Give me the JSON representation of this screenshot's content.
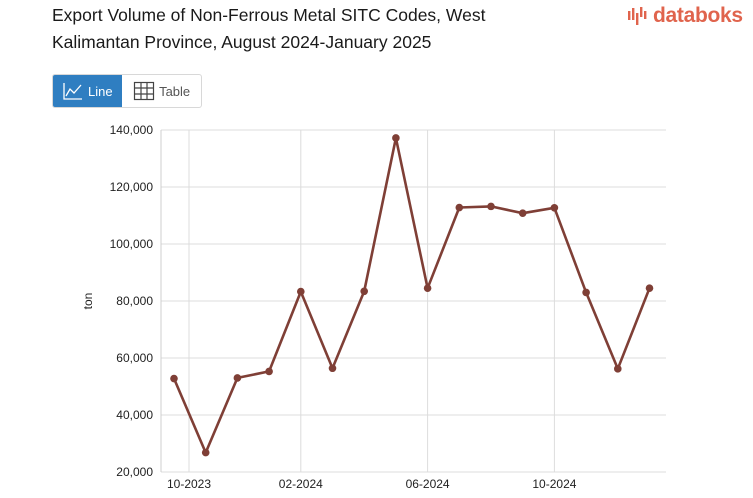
{
  "title": "Export Volume of Non-Ferrous Metal SITC Codes, West Kalimantan Province, August 2024-January 2025",
  "logo": {
    "text": "databoks",
    "color": "#e0644d"
  },
  "view_toggle": {
    "line_label": "Line",
    "table_label": "Table",
    "active": "Line",
    "active_color": "#2f7ec1"
  },
  "chart_data": {
    "type": "line",
    "title": "Export Volume of Non-Ferrous Metal SITC Codes, West Kalimantan Province, August 2024-January 2025",
    "xlabel": "",
    "ylabel": "ton",
    "ylim": [
      20000,
      140000
    ],
    "yticks": [
      20000,
      40000,
      60000,
      80000,
      100000,
      120000,
      140000
    ],
    "ytick_labels": [
      "20,000",
      "40,000",
      "60,000",
      "80,000",
      "100,000",
      "120,000",
      "140,000"
    ],
    "x": [
      "2023-10",
      "2023-11",
      "2023-12",
      "2024-01",
      "2024-02",
      "2024-03",
      "2024-04",
      "2024-05",
      "2024-06",
      "2024-07",
      "2024-08",
      "2024-09",
      "2024-10",
      "2024-11",
      "2024-12",
      "2025-01"
    ],
    "xticks": [
      "2023-10",
      "2024-02",
      "2024-06",
      "2024-10"
    ],
    "xtick_labels": [
      "10-2023",
      "02-2024",
      "06-2024",
      "10-2024"
    ],
    "series": [
      {
        "color": "#7f3f36",
        "values": [
          52800,
          26800,
          53000,
          55300,
          83300,
          56400,
          83400,
          137200,
          84500,
          112800,
          113200,
          110800,
          112700,
          83000,
          56200,
          84500
        ]
      }
    ],
    "grid": true,
    "legend": "none"
  }
}
